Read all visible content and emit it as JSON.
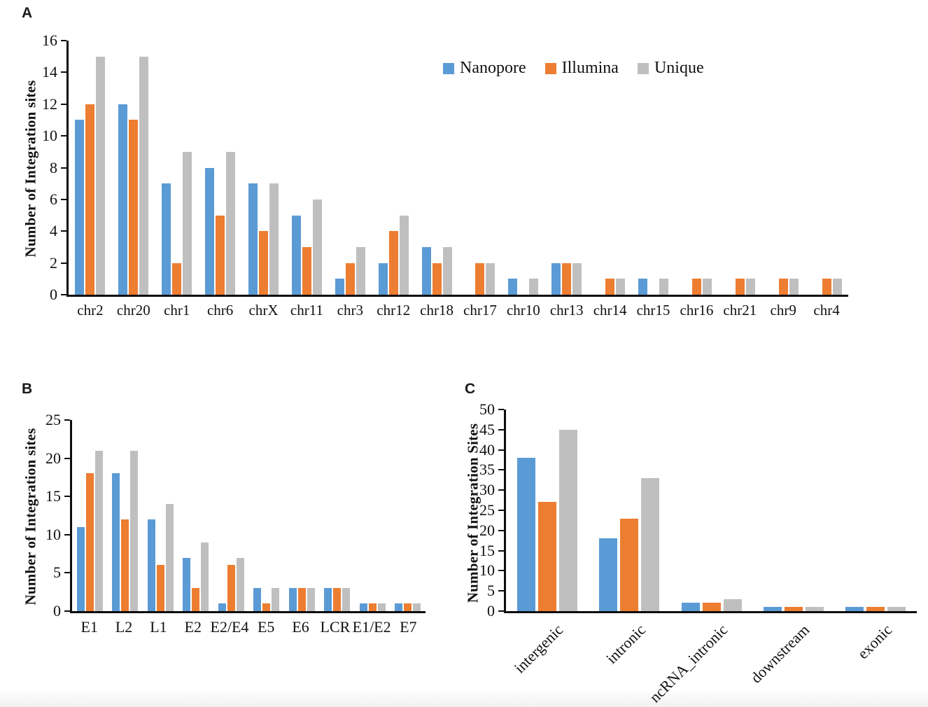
{
  "page": {
    "background": "#ffffff"
  },
  "panels": [
    {
      "label": "A"
    },
    {
      "label": "B"
    },
    {
      "label": "C"
    }
  ],
  "legend": {
    "position": "top-right-inside-panel-A",
    "items": [
      {
        "label": "Nanopore",
        "color": "#5B9BD5"
      },
      {
        "label": "Illumina",
        "color": "#ED7D31"
      },
      {
        "label": "Unique",
        "color": "#BFBFBF"
      }
    ]
  },
  "colors": {
    "nanopore_blue": "#5B9BD5",
    "illumina_orange": "#ED7D31",
    "unique_gray": "#BFBFBF",
    "axis_black": "#0d0d0d"
  },
  "chart_data": [
    {
      "type": "bar",
      "panel": "A",
      "title": "",
      "xlabel": "",
      "ylabel": "Number of Integration sites",
      "ylim": [
        0,
        16
      ],
      "ytick_step": 2,
      "grid": false,
      "xlabel_rotation": 0,
      "categories": [
        "chr2",
        "chr20",
        "chr1",
        "chr6",
        "chrX",
        "chr11",
        "chr3",
        "chr12",
        "chr18",
        "chr17",
        "chr10",
        "chr13",
        "chr14",
        "chr15",
        "chr16",
        "chr21",
        "chr9",
        "chr4"
      ],
      "series": [
        {
          "name": "Nanopore",
          "color": "#5B9BD5",
          "values": [
            11,
            12,
            7,
            8,
            7,
            5,
            1,
            2,
            3,
            0,
            1,
            2,
            0,
            1,
            0,
            0,
            0,
            0
          ]
        },
        {
          "name": "Illumina",
          "color": "#ED7D31",
          "values": [
            12,
            11,
            2,
            5,
            4,
            3,
            2,
            4,
            2,
            2,
            0,
            2,
            1,
            0,
            1,
            1,
            1,
            1
          ]
        },
        {
          "name": "Unique",
          "color": "#BFBFBF",
          "values": [
            15,
            15,
            9,
            9,
            7,
            6,
            3,
            5,
            3,
            2,
            1,
            2,
            1,
            1,
            1,
            1,
            1,
            1
          ]
        }
      ]
    },
    {
      "type": "bar",
      "panel": "B",
      "title": "",
      "xlabel": "",
      "ylabel": "Number of Integration sites",
      "ylim": [
        0,
        25
      ],
      "ytick_step": 5,
      "grid": false,
      "xlabel_rotation": 0,
      "categories": [
        "E1",
        "L2",
        "L1",
        "E2",
        "E2/E4",
        "E5",
        "E6",
        "LCR",
        "E1/E2",
        "E7"
      ],
      "series": [
        {
          "name": "Nanopore",
          "color": "#5B9BD5",
          "values": [
            11,
            18,
            12,
            7,
            1,
            3,
            3,
            3,
            1,
            1
          ]
        },
        {
          "name": "Illumina",
          "color": "#ED7D31",
          "values": [
            18,
            12,
            6,
            3,
            6,
            1,
            3,
            3,
            1,
            1
          ]
        },
        {
          "name": "Unique",
          "color": "#BFBFBF",
          "values": [
            21,
            21,
            14,
            9,
            7,
            3,
            3,
            3,
            1,
            1
          ]
        }
      ]
    },
    {
      "type": "bar",
      "panel": "C",
      "title": "",
      "xlabel": "",
      "ylabel": "Number of Integration Sites",
      "ylim": [
        0,
        50
      ],
      "ytick_step": 5,
      "grid": false,
      "xlabel_rotation": -45,
      "categories": [
        "intergenic",
        "intronic",
        "ncRNA_intronic",
        "downstream",
        "exonic"
      ],
      "series": [
        {
          "name": "Nanopore",
          "color": "#5B9BD5",
          "values": [
            38,
            18,
            2,
            1,
            1
          ]
        },
        {
          "name": "Illumina",
          "color": "#ED7D31",
          "values": [
            27,
            23,
            2,
            1,
            1
          ]
        },
        {
          "name": "Unique",
          "color": "#BFBFBF",
          "values": [
            45,
            33,
            3,
            1,
            1
          ]
        }
      ]
    }
  ]
}
